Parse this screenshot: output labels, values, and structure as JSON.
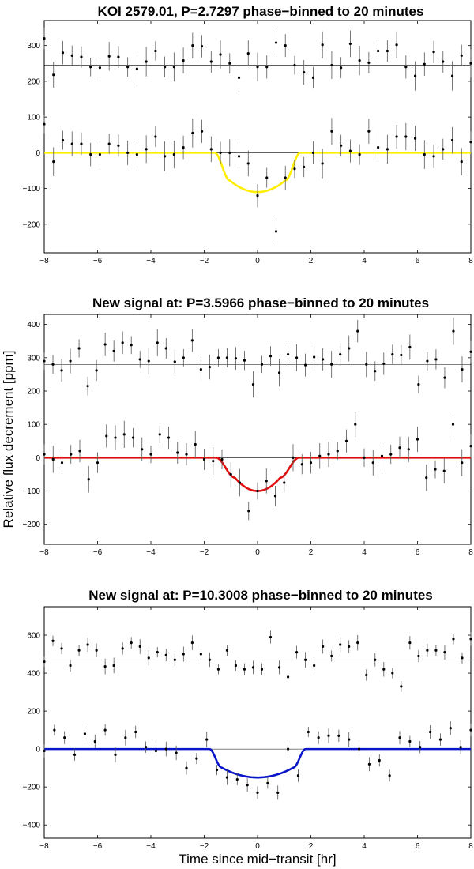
{
  "figure": {
    "ylabel": "Relative flux decrement [ppm]",
    "xlabel": "Time since mid−transit [hr]"
  },
  "chart_data": [
    {
      "type": "scatter",
      "title": "KOI 2579.01, P=2.7297 phase−binned to 20 minutes",
      "xlim": [
        -8,
        8
      ],
      "ylim": [
        -280,
        370
      ],
      "xticks": [
        -8,
        -6,
        -4,
        -2,
        0,
        2,
        4,
        6,
        8
      ],
      "yticks": [
        -200,
        -100,
        0,
        100,
        200,
        300
      ],
      "tick_labels_x": [
        "−8",
        "−6",
        "−4",
        "−2",
        "0",
        "2",
        "4",
        "6",
        "8"
      ],
      "tick_labels_y": [
        "−200",
        "−100",
        "0",
        "100",
        "200",
        "300"
      ],
      "offset": 245,
      "model_color": "#ffee00",
      "model": {
        "depth": 110,
        "t_full_start": 1.05,
        "t_full_end": 1.6,
        "curv": 0.3
      },
      "upper_points": [
        320,
        218,
        280,
        272,
        268,
        240,
        238,
        270,
        268,
        240,
        235,
        255,
        285,
        240,
        240,
        258,
        300,
        298,
        255,
        275,
        250,
        210,
        278,
        240,
        240,
        308,
        300,
        245,
        225,
        210,
        302,
        245,
        238,
        305,
        258,
        252,
        285,
        285,
        302,
        240,
        215,
        248,
        282,
        255,
        215,
        272,
        250
      ],
      "lower_points": [
        80,
        -25,
        35,
        25,
        25,
        -5,
        -5,
        25,
        20,
        0,
        -5,
        10,
        45,
        -10,
        -5,
        15,
        55,
        60,
        10,
        0,
        0,
        -10,
        -30,
        -120,
        -70,
        -220,
        -70,
        -45,
        -40,
        0,
        -30,
        60,
        20,
        5,
        -5,
        60,
        15,
        10,
        45,
        45,
        40,
        -5,
        -10,
        10,
        35,
        -25,
        30
      ]
    },
    {
      "type": "scatter",
      "title": "New signal at: P=3.5966 phase−binned to 20 minutes",
      "xlim": [
        -8,
        8
      ],
      "ylim": [
        -260,
        430
      ],
      "xticks": [
        -8,
        -6,
        -4,
        -2,
        0,
        2,
        4,
        6,
        8
      ],
      "yticks": [
        -200,
        -100,
        0,
        100,
        200,
        300,
        400
      ],
      "tick_labels_x": [
        "−8",
        "−6",
        "−4",
        "−2",
        "0",
        "2",
        "4",
        "6",
        "8"
      ],
      "tick_labels_y": [
        "−200",
        "−100",
        "0",
        "100",
        "200",
        "300",
        "400"
      ],
      "offset": 280,
      "model_color": "#e01010",
      "model": {
        "depth": 100,
        "t_full_start": 0.85,
        "t_full_end": 1.55,
        "curv": 0.4
      },
      "upper_points": [
        290,
        280,
        262,
        290,
        328,
        215,
        262,
        340,
        320,
        345,
        338,
        295,
        290,
        345,
        328,
        288,
        300,
        352,
        265,
        272,
        300,
        300,
        298,
        292,
        220,
        280,
        305,
        255,
        310,
        300,
        278,
        302,
        295,
        280,
        310,
        328,
        380,
        280,
        260,
        282,
        310,
        308,
        332,
        220,
        290,
        295,
        240,
        380,
        265,
        318
      ],
      "lower_points": [
        10,
        -5,
        -15,
        10,
        20,
        -65,
        -15,
        65,
        60,
        70,
        60,
        25,
        10,
        70,
        60,
        15,
        10,
        40,
        -5,
        -10,
        -5,
        -50,
        -75,
        -160,
        -100,
        -70,
        -115,
        -75,
        0,
        -20,
        -15,
        5,
        10,
        20,
        50,
        100,
        0,
        -15,
        5,
        10,
        30,
        25,
        55,
        -60,
        -35,
        -40,
        100,
        -15,
        35
      ]
    },
    {
      "type": "scatter",
      "title": "New signal at: P=10.3008 phase−binned to 20 minutes",
      "xlim": [
        -8,
        8
      ],
      "ylim": [
        -470,
        750
      ],
      "xticks": [
        -8,
        -6,
        -4,
        -2,
        0,
        2,
        4,
        6,
        8
      ],
      "yticks": [
        -400,
        -200,
        0,
        200,
        400,
        600
      ],
      "tick_labels_x": [
        "−8",
        "−6",
        "−4",
        "−2",
        "0",
        "2",
        "4",
        "6",
        "8"
      ],
      "tick_labels_y": [
        "−400",
        "−200",
        "0",
        "200",
        "400",
        "600"
      ],
      "offset": 470,
      "model_color": "#0a14c8",
      "model": {
        "depth": 150,
        "t_full_start": 1.35,
        "t_full_end": 1.8,
        "curv": 0.35
      },
      "upper_points": [
        460,
        570,
        530,
        440,
        520,
        550,
        520,
        435,
        440,
        530,
        560,
        540,
        480,
        510,
        495,
        470,
        500,
        560,
        500,
        470,
        420,
        520,
        440,
        420,
        430,
        420,
        590,
        430,
        380,
        510,
        470,
        440,
        540,
        490,
        550,
        540,
        560,
        390,
        470,
        420,
        400,
        330,
        560,
        490,
        520,
        520,
        510,
        580,
        480,
        580
      ],
      "lower_points": [
        -10,
        100,
        60,
        -30,
        80,
        40,
        100,
        -30,
        60,
        90,
        10,
        -10,
        0,
        -20,
        -100,
        -50,
        50,
        -110,
        -150,
        -160,
        -190,
        -230,
        -180,
        -230,
        0,
        -140,
        90,
        60,
        70,
        70,
        50,
        0,
        -80,
        -60,
        -140,
        60,
        40,
        10,
        90,
        50,
        110,
        10,
        100
      ]
    }
  ]
}
